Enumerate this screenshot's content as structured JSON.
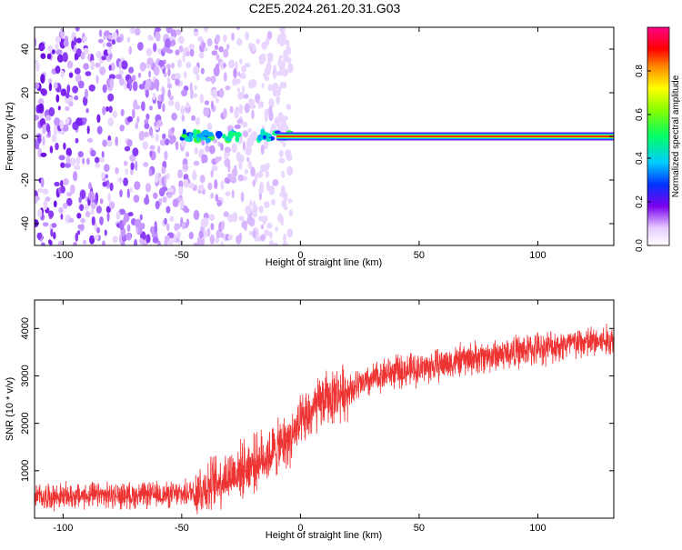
{
  "title": "C2E5.2024.261.20.31.G03",
  "chart_data": [
    {
      "type": "heatmap",
      "xlabel": "Height of straight line (km)",
      "ylabel": "Frequency (Hz)",
      "xlim": [
        -112,
        132
      ],
      "ylim": [
        -50,
        50
      ],
      "xticks": [
        -100,
        -50,
        0,
        50,
        100
      ],
      "yticks": [
        -40,
        -20,
        0,
        20,
        40
      ],
      "colorbar": {
        "label": "Normalized spectral amplitude",
        "range": [
          0,
          1
        ],
        "ticks": [
          0.0,
          0.2,
          0.4,
          0.6,
          0.8
        ],
        "tick_labels": [
          "0.0",
          "0.2",
          "0.4",
          "0.6",
          "0.8"
        ],
        "colormap": "rainbow (white, violet, blue, cyan, green, yellow, red, magenta)"
      },
      "features": {
        "noise_region_km": [
          -112,
          -10
        ],
        "carrier_line_frequency_hz": 0,
        "carrier_line_start_km": -10,
        "carrier_line_end_km": 132
      }
    },
    {
      "type": "line",
      "xlabel": "Height of straight line (km)",
      "ylabel": "SNR (10 * v/v)",
      "xlim": [
        -112,
        132
      ],
      "ylim": [
        0,
        4600
      ],
      "xticks": [
        -100,
        -50,
        0,
        50,
        100
      ],
      "yticks": [
        1000,
        2000,
        3000,
        4000
      ],
      "series": [
        {
          "color": "#ee3333",
          "trend_x": [
            -112,
            -90,
            -70,
            -50,
            -40,
            -30,
            -20,
            -15,
            -10,
            -5,
            0,
            5,
            10,
            20,
            30,
            35,
            50,
            70,
            90,
            110,
            132
          ],
          "trend_y": [
            450,
            470,
            480,
            500,
            650,
            900,
            1150,
            1300,
            1450,
            1650,
            1950,
            2250,
            2500,
            2700,
            2900,
            3050,
            3150,
            3350,
            3500,
            3650,
            3750
          ]
        }
      ]
    }
  ]
}
